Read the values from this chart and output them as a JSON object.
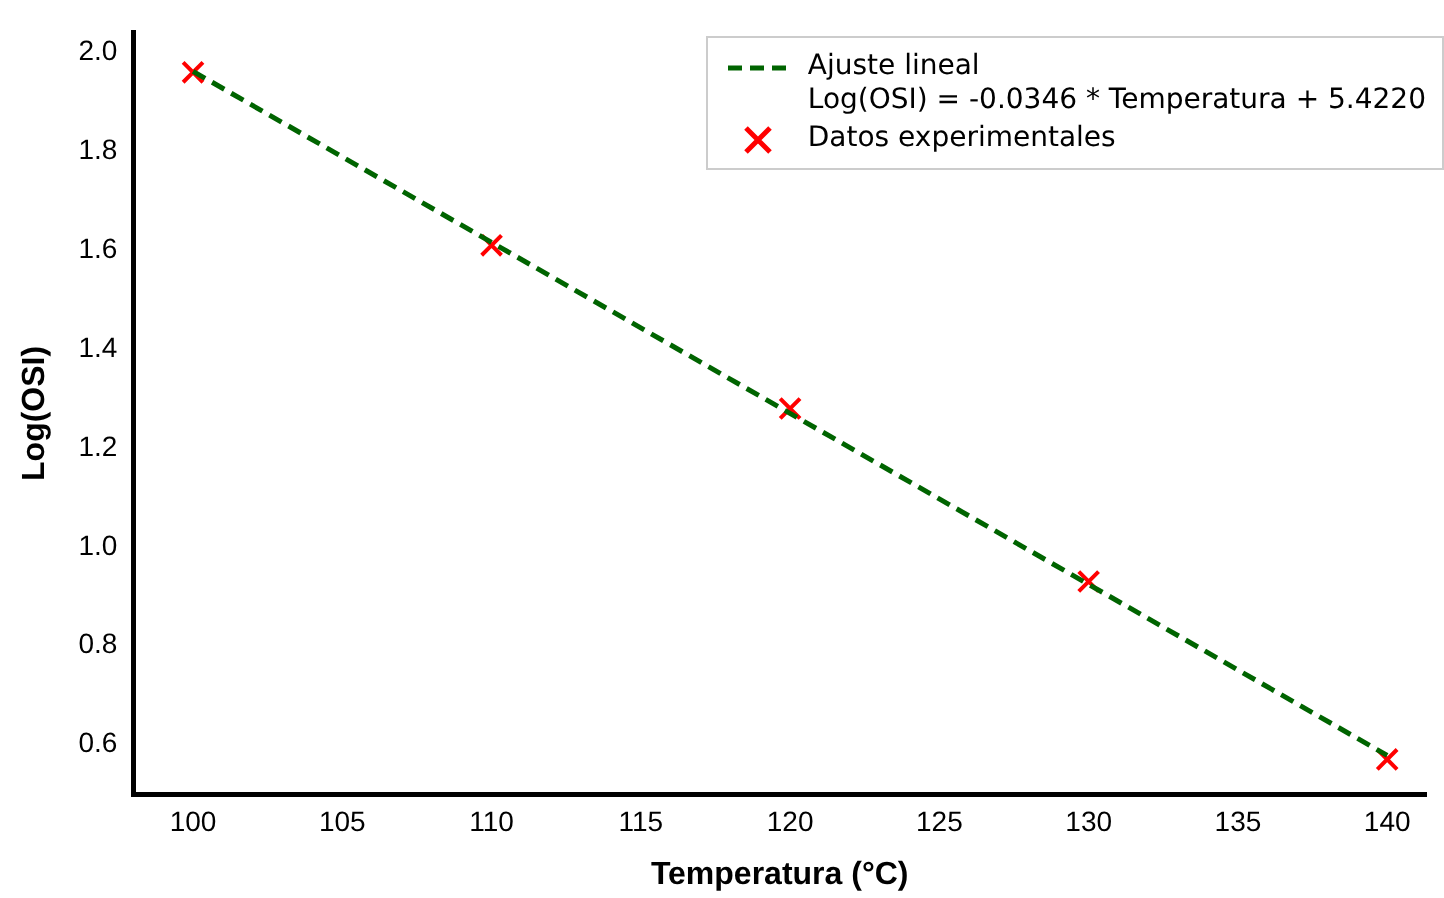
{
  "chart_data": {
    "type": "scatter",
    "xlabel": "Temperatura (°C)",
    "ylabel": "Log(OSI)",
    "xlim": [
      98,
      141.3
    ],
    "ylim": [
      0.5,
      2.04
    ],
    "xticks": [
      100,
      105,
      110,
      115,
      120,
      125,
      130,
      135,
      140
    ],
    "yticks": [
      0.6,
      0.8,
      {
        "value": 1.0,
        "label": "1.0"
      },
      1.2,
      1.4,
      1.6,
      1.8,
      {
        "value": 2.0,
        "label": "2.0"
      }
    ],
    "grid": false,
    "legend": "top right",
    "series": [
      {
        "name": "Ajuste lineal\nLog(OSI) = -0.0346 * Temperatura + 5.4220",
        "type": "line",
        "color": "#006400",
        "x": [
          100,
          140
        ],
        "values": [
          1.962,
          0.578
        ],
        "line_style": "dashed",
        "marker": "none"
      },
      {
        "name": "Datos experimentales",
        "type": "scatter",
        "color": "#ff0000",
        "x": [
          100,
          110,
          120,
          130,
          140
        ],
        "values": [
          1.96,
          1.61,
          1.28,
          0.93,
          0.57
        ],
        "marker": "cross"
      }
    ]
  }
}
